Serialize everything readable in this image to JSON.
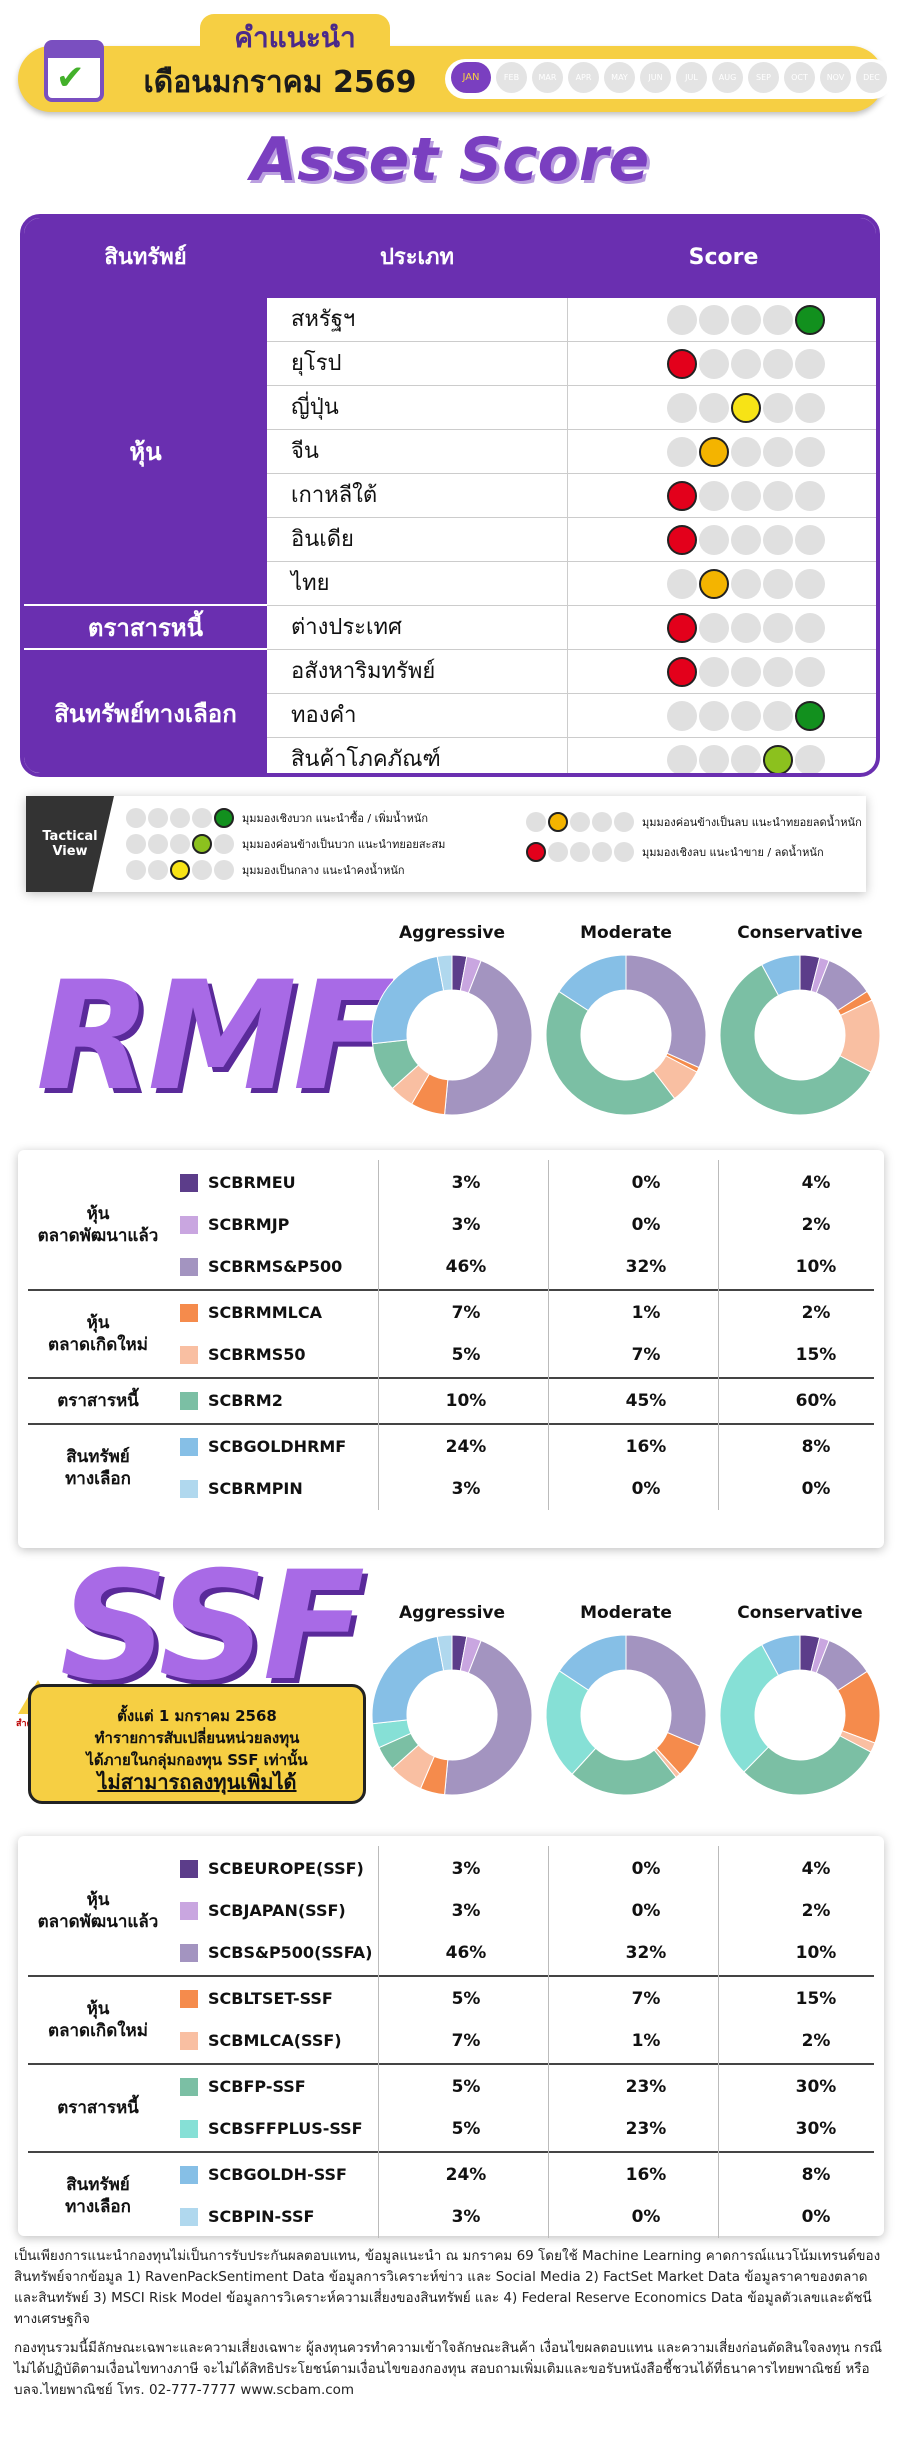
{
  "header": {
    "sup": "คำแนะนำ",
    "month": "เดือนมกราคม 2569",
    "months": [
      "JAN",
      "FEB",
      "MAR",
      "APR",
      "MAY",
      "JUN",
      "JUL",
      "AUG",
      "SEP",
      "OCT",
      "NOV",
      "DEC"
    ]
  },
  "title": "Asset Score",
  "score_table": {
    "headers": {
      "asset": "สินทรัพย์",
      "type": "ประเภท",
      "score": "Score"
    },
    "categories": [
      "หุ้น",
      "ตราสารหนี้",
      "สินทรัพย์ทางเลือก"
    ],
    "rows": [
      {
        "name": "สหรัฐฯ",
        "level": 5,
        "color": "#12901e"
      },
      {
        "name": "ยุโรป",
        "level": 1,
        "color": "#e3001b"
      },
      {
        "name": "ญี่ปุ่น",
        "level": 3,
        "color": "#f7e316"
      },
      {
        "name": "จีน",
        "level": 2,
        "color": "#f4b400"
      },
      {
        "name": "เกาหลีใต้",
        "level": 1,
        "color": "#e3001b"
      },
      {
        "name": "อินเดีย",
        "level": 1,
        "color": "#e3001b"
      },
      {
        "name": "ไทย",
        "level": 2,
        "color": "#f4b400"
      },
      {
        "name": "ต่างประเทศ",
        "level": 1,
        "color": "#e3001b"
      },
      {
        "name": "อสังหาริมทรัพย์",
        "level": 1,
        "color": "#e3001b"
      },
      {
        "name": "ทองคำ",
        "level": 5,
        "color": "#12901e"
      },
      {
        "name": "สินค้าโภคภัณฑ์",
        "level": 4,
        "color": "#8cc11e"
      }
    ]
  },
  "legend": {
    "tag": "Tactical View",
    "items": [
      {
        "text": "มุมมองเชิงบวก แนะนำซื้อ / เพิ่มน้ำหนัก",
        "level": 5,
        "color": "#12901e"
      },
      {
        "text": "มุมมองค่อนข้างเป็นบวก แนะนำทยอยสะสม",
        "level": 4,
        "color": "#8cc11e"
      },
      {
        "text": "มุมมองเป็นกลาง แนะนำคงน้ำหนัก",
        "level": 3,
        "color": "#f7e316"
      },
      {
        "text": "มุมมองค่อนข้างเป็นลบ แนะนำทยอยลดน้ำหนัก",
        "level": 2,
        "color": "#f4b400"
      },
      {
        "text": "มุมมองเชิงลบ แนะนำขาย / ลดน้ำหนัก",
        "level": 1,
        "color": "#e3001b"
      }
    ]
  },
  "profiles": [
    "Aggressive",
    "Moderate",
    "Conservative"
  ],
  "rmf": {
    "label": "RMF",
    "groups": [
      {
        "name": "หุ้น\nตลาดพัฒนาแล้ว",
        "funds": [
          {
            "code": "SCBRMEU",
            "color": "#5c3d8a",
            "values": [
              3,
              0,
              4
            ]
          },
          {
            "code": "SCBRMJP",
            "color": "#c9a6e0",
            "values": [
              3,
              0,
              2
            ]
          },
          {
            "code": "SCBRMS&P500",
            "color": "#a394c0",
            "values": [
              46,
              32,
              10
            ]
          }
        ]
      },
      {
        "name": "หุ้น\nตลาดเกิดใหม่",
        "funds": [
          {
            "code": "SCBRMMLCA",
            "color": "#f58b4c",
            "values": [
              7,
              1,
              2
            ]
          },
          {
            "code": "SCBRMS50",
            "color": "#f9bfa2",
            "values": [
              5,
              7,
              15
            ]
          }
        ]
      },
      {
        "name": "ตราสารหนี้",
        "funds": [
          {
            "code": "SCBRM2",
            "color": "#7bbfa4",
            "values": [
              10,
              45,
              60
            ]
          }
        ]
      },
      {
        "name": "สินทรัพย์\nทางเลือก",
        "funds": [
          {
            "code": "SCBGOLDHRMF",
            "color": "#86bfe6",
            "values": [
              24,
              16,
              8
            ]
          },
          {
            "code": "SCBRMPIN",
            "color": "#b0d8ee",
            "values": [
              3,
              0,
              0
            ]
          }
        ]
      }
    ]
  },
  "ssf": {
    "label": "SSF",
    "note": {
      "line1": "ตั้งแต่ 1 มกราคม 2568",
      "line2": "ทำรายการสับเปลี่ยนหน่วยลงทุน",
      "line3": "ได้ภายในกลุ่มกองทุน SSF เท่านั้น",
      "line4": "ไม่สามารถลงทุนเพิ่มได้",
      "warn": "สำคัญ"
    },
    "groups": [
      {
        "name": "หุ้น\nตลาดพัฒนาแล้ว",
        "funds": [
          {
            "code": "SCBEUROPE(SSF)",
            "color": "#5c3d8a",
            "values": [
              3,
              0,
              4
            ]
          },
          {
            "code": "SCBJAPAN(SSF)",
            "color": "#c9a6e0",
            "values": [
              3,
              0,
              2
            ]
          },
          {
            "code": "SCBS&P500(SSFA)",
            "color": "#a394c0",
            "values": [
              46,
              32,
              10
            ]
          }
        ]
      },
      {
        "name": "หุ้น\nตลาดเกิดใหม่",
        "funds": [
          {
            "code": "SCBLTSET-SSF",
            "color": "#f58b4c",
            "values": [
              5,
              7,
              15
            ]
          },
          {
            "code": "SCBMLCA(SSF)",
            "color": "#f9bfa2",
            "values": [
              7,
              1,
              2
            ]
          }
        ]
      },
      {
        "name": "ตราสารหนี้",
        "funds": [
          {
            "code": "SCBFP-SSF",
            "color": "#7bbfa4",
            "values": [
              5,
              23,
              30
            ]
          },
          {
            "code": "SCBSFFPLUS-SSF",
            "color": "#86e0d6",
            "values": [
              5,
              23,
              30
            ]
          }
        ]
      },
      {
        "name": "สินทรัพย์\nทางเลือก",
        "funds": [
          {
            "code": "SCBGOLDH-SSF",
            "color": "#86bfe6",
            "values": [
              24,
              16,
              8
            ]
          },
          {
            "code": "SCBPIN-SSF",
            "color": "#b0d8ee",
            "values": [
              3,
              0,
              0
            ]
          }
        ]
      }
    ]
  },
  "disclaimer": {
    "p1": "เป็นเพียงการแนะนำกองทุนไม่เป็นการรับประกันผลตอบแทน, ข้อมูลแนะนำ ณ มกราคม 69 โดยใช้ Machine Learning คาดการณ์แนวโน้มเทรนด์ของสินทรัพย์จากข้อมูล 1) RavenPackSentiment Data ข้อมูลการวิเคราะห์ข่าว และ Social Media 2) FactSet Market Data ข้อมูลราคาของตลาด และสินทรัพย์ 3) MSCI Risk Model ข้อมูลการวิเคราะห์ความเสี่ยงของสินทรัพย์ และ 4) Federal Reserve Economics Data ข้อมูลตัวเลขและดัชนีทางเศรษฐกิจ",
    "p2": "กองทุนรวมนี้มีลักษณะเฉพาะและความเสี่ยงเฉพาะ ผู้ลงทุนควรทำความเข้าใจลักษณะสินค้า เงื่อนไขผลตอบแทน และความเสี่ยงก่อนตัดสินใจลงทุน กรณีไม่ได้ปฏิบัติตามเงื่อนไขทางภาษี จะไม่ได้สิทธิประโยชน์ตามเงื่อนไขของกองทุน สอบถามเพิ่มเติมและขอรับหนังสือชี้ชวนได้ที่ธนาคารไทยพาณิชย์ หรือ บลจ.ไทยพาณิชย์ โทร. 02-777-7777 www.scbam.com"
  }
}
